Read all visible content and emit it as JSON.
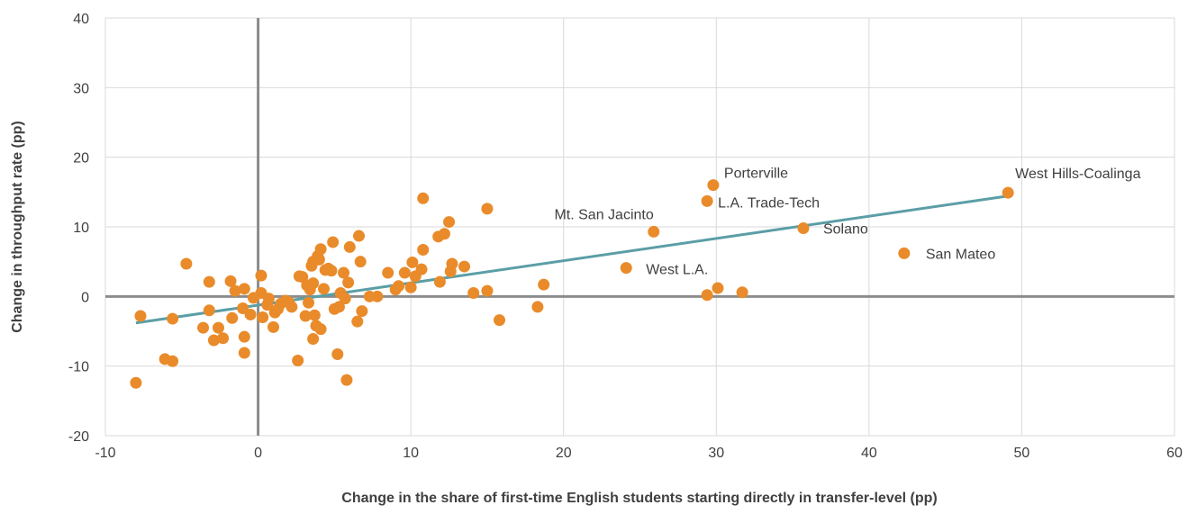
{
  "chart_data": {
    "type": "scatter",
    "title": "",
    "xlabel": "Change in the share of first-time English students starting directly in transfer-level (pp)",
    "ylabel": "Change in throughput rate (pp)",
    "xlim": [
      -10,
      60
    ],
    "ylim": [
      -20,
      40
    ],
    "xticks": [
      -10,
      0,
      10,
      20,
      30,
      40,
      50,
      60
    ],
    "yticks": [
      -20,
      -10,
      0,
      10,
      20,
      30,
      40
    ],
    "grid": true,
    "colors": {
      "points": "#E98B2A",
      "trendline": "#5B9EA6",
      "zero_lines": "#8C8C8C",
      "grid": "#D9D9D9"
    },
    "trendline": {
      "x": [
        -8,
        49
      ],
      "y": [
        -3.8,
        14.4
      ]
    },
    "labeled_points": [
      {
        "label": "Porterville",
        "x": 29.8,
        "y": 16.0
      },
      {
        "label": "West Hills-Coalinga",
        "x": 49.1,
        "y": 14.9
      },
      {
        "label": "L.A. Trade-Tech",
        "x": 29.4,
        "y": 13.7
      },
      {
        "label": "Mt. San Jacinto",
        "x": 25.9,
        "y": 9.3
      },
      {
        "label": "Solano",
        "x": 35.7,
        "y": 9.8
      },
      {
        "label": "San Mateo",
        "x": 42.3,
        "y": 6.2
      },
      {
        "label": "West L.A.",
        "x": 24.1,
        "y": 4.1
      }
    ],
    "points": [
      [
        -8,
        -12.4
      ],
      [
        -7.7,
        -2.8
      ],
      [
        -6.1,
        -9.0
      ],
      [
        -5.6,
        -9.3
      ],
      [
        -5.6,
        -3.2
      ],
      [
        -4.7,
        4.7
      ],
      [
        -3.6,
        -4.5
      ],
      [
        -3.2,
        2.1
      ],
      [
        -3.2,
        -2.0
      ],
      [
        -2.9,
        -6.3
      ],
      [
        -2.6,
        -4.5
      ],
      [
        -2.3,
        -6.0
      ],
      [
        -1.8,
        2.2
      ],
      [
        -1.7,
        -3.1
      ],
      [
        -1.5,
        0.8
      ],
      [
        -1.0,
        -1.7
      ],
      [
        -0.9,
        1.1
      ],
      [
        -0.9,
        -5.8
      ],
      [
        -0.9,
        -8.1
      ],
      [
        -0.5,
        -2.6
      ],
      [
        -0.3,
        -0.2
      ],
      [
        0.2,
        0.5
      ],
      [
        0.2,
        3.0
      ],
      [
        0.3,
        -3.0
      ],
      [
        0.6,
        -1.2
      ],
      [
        0.7,
        -0.3
      ],
      [
        1.0,
        -4.4
      ],
      [
        1.1,
        -2.3
      ],
      [
        1.3,
        -1.8
      ],
      [
        1.5,
        -1.0
      ],
      [
        1.8,
        -0.6
      ],
      [
        2.0,
        -0.8
      ],
      [
        2.2,
        -1.5
      ],
      [
        2.6,
        -9.2
      ],
      [
        2.7,
        2.9
      ],
      [
        2.9,
        2.8
      ],
      [
        3.1,
        -2.8
      ],
      [
        3.2,
        1.6
      ],
      [
        3.3,
        -0.9
      ],
      [
        3.4,
        1.0
      ],
      [
        3.5,
        4.4
      ],
      [
        3.6,
        5.0
      ],
      [
        3.6,
        1.9
      ],
      [
        3.6,
        -6.1
      ],
      [
        3.7,
        -2.7
      ],
      [
        3.8,
        -4.2
      ],
      [
        3.9,
        5.8
      ],
      [
        4.0,
        5.3
      ],
      [
        4.1,
        6.8
      ],
      [
        4.1,
        -4.7
      ],
      [
        4.3,
        1.1
      ],
      [
        4.4,
        3.8
      ],
      [
        4.6,
        4.0
      ],
      [
        4.8,
        3.7
      ],
      [
        4.9,
        7.8
      ],
      [
        5.0,
        -1.8
      ],
      [
        5.2,
        -8.3
      ],
      [
        5.3,
        -1.5
      ],
      [
        5.4,
        0.5
      ],
      [
        5.6,
        3.4
      ],
      [
        5.7,
        -0.3
      ],
      [
        5.8,
        -12.0
      ],
      [
        5.9,
        2.0
      ],
      [
        6.0,
        7.1
      ],
      [
        6.5,
        -3.6
      ],
      [
        6.6,
        8.7
      ],
      [
        6.7,
        5.0
      ],
      [
        6.8,
        -2.1
      ],
      [
        7.3,
        0.0
      ],
      [
        7.8,
        0.0
      ],
      [
        8.5,
        3.4
      ],
      [
        9.0,
        1.0
      ],
      [
        9.2,
        1.5
      ],
      [
        9.6,
        3.4
      ],
      [
        10.0,
        1.3
      ],
      [
        10.1,
        4.9
      ],
      [
        10.3,
        2.9
      ],
      [
        10.7,
        3.9
      ],
      [
        10.8,
        6.7
      ],
      [
        10.8,
        14.1
      ],
      [
        11.8,
        8.6
      ],
      [
        11.9,
        2.1
      ],
      [
        12.2,
        9.0
      ],
      [
        12.5,
        10.7
      ],
      [
        12.6,
        3.6
      ],
      [
        12.7,
        4.7
      ],
      [
        13.5,
        4.3
      ],
      [
        14.1,
        0.5
      ],
      [
        15.0,
        12.6
      ],
      [
        15.0,
        0.8
      ],
      [
        15.8,
        -3.4
      ],
      [
        18.3,
        -1.5
      ],
      [
        18.7,
        1.7
      ],
      [
        29.4,
        0.2
      ],
      [
        30.1,
        1.2
      ],
      [
        31.7,
        0.6
      ]
    ]
  }
}
